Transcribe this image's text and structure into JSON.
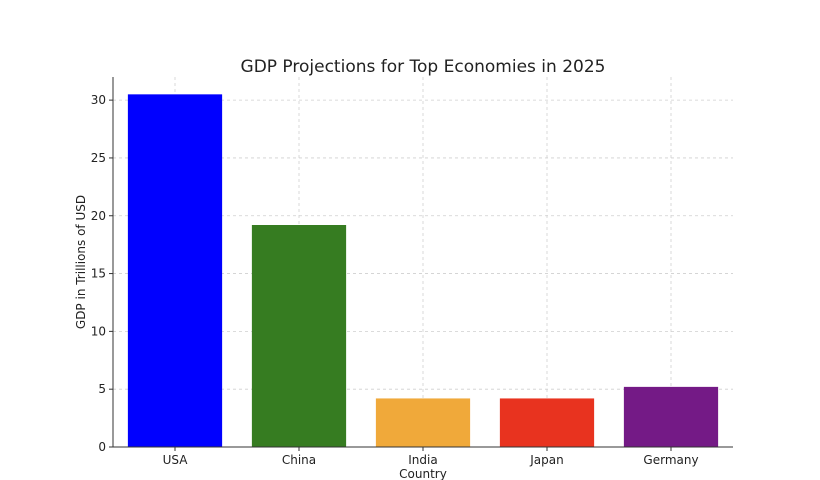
{
  "chart_data": {
    "type": "bar",
    "title": "GDP Projections for Top Economies in 2025",
    "xlabel": "Country",
    "ylabel": "GDP in Trillions of USD",
    "categories": [
      "USA",
      "China",
      "India",
      "Japan",
      "Germany"
    ],
    "values": [
      30.5,
      19.2,
      4.2,
      4.2,
      5.2
    ],
    "colors": [
      "#0000ff",
      "#367c21",
      "#f0a93a",
      "#e8331f",
      "#741a86"
    ],
    "ylim": [
      0,
      32
    ],
    "yticks": [
      0,
      5,
      10,
      15,
      20,
      25,
      30
    ],
    "grid": true,
    "legend": "none"
  }
}
